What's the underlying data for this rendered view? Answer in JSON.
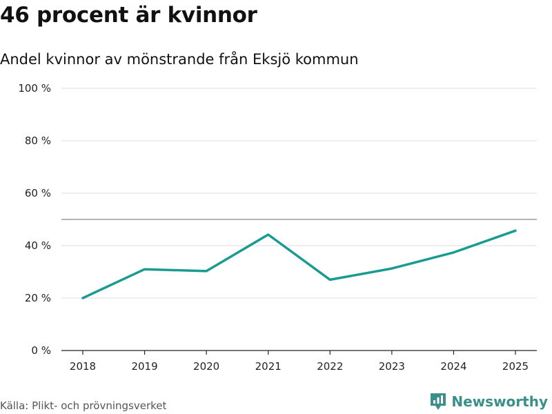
{
  "header": {
    "title": "46 procent är kvinnor",
    "subtitle": "Andel kvinnor av mönstrande från Eksjö kommun"
  },
  "footer": {
    "source": "Källa: Plikt- och prövningsverket",
    "brand": "Newsworthy"
  },
  "colors": {
    "line": "#1a9b91",
    "reference_line": "#888888",
    "grid": "#dddddd",
    "brand": "#3a8f8b"
  },
  "chart_data": {
    "type": "line",
    "x": [
      "2018",
      "2019",
      "2020",
      "2021",
      "2022",
      "2023",
      "2024",
      "2025"
    ],
    "series": [
      {
        "values": [
          20,
          31,
          30.3,
          44.2,
          27,
          31.3,
          37.4,
          45.7
        ]
      }
    ],
    "reference_line": 50,
    "ylim": [
      0,
      100
    ],
    "yticks": [
      0,
      20,
      40,
      60,
      80,
      100
    ],
    "ytick_labels": [
      "0 %",
      "20 %",
      "40 %",
      "60 %",
      "80 %",
      "100 %"
    ],
    "grid": true,
    "xlabel": "",
    "ylabel": ""
  }
}
